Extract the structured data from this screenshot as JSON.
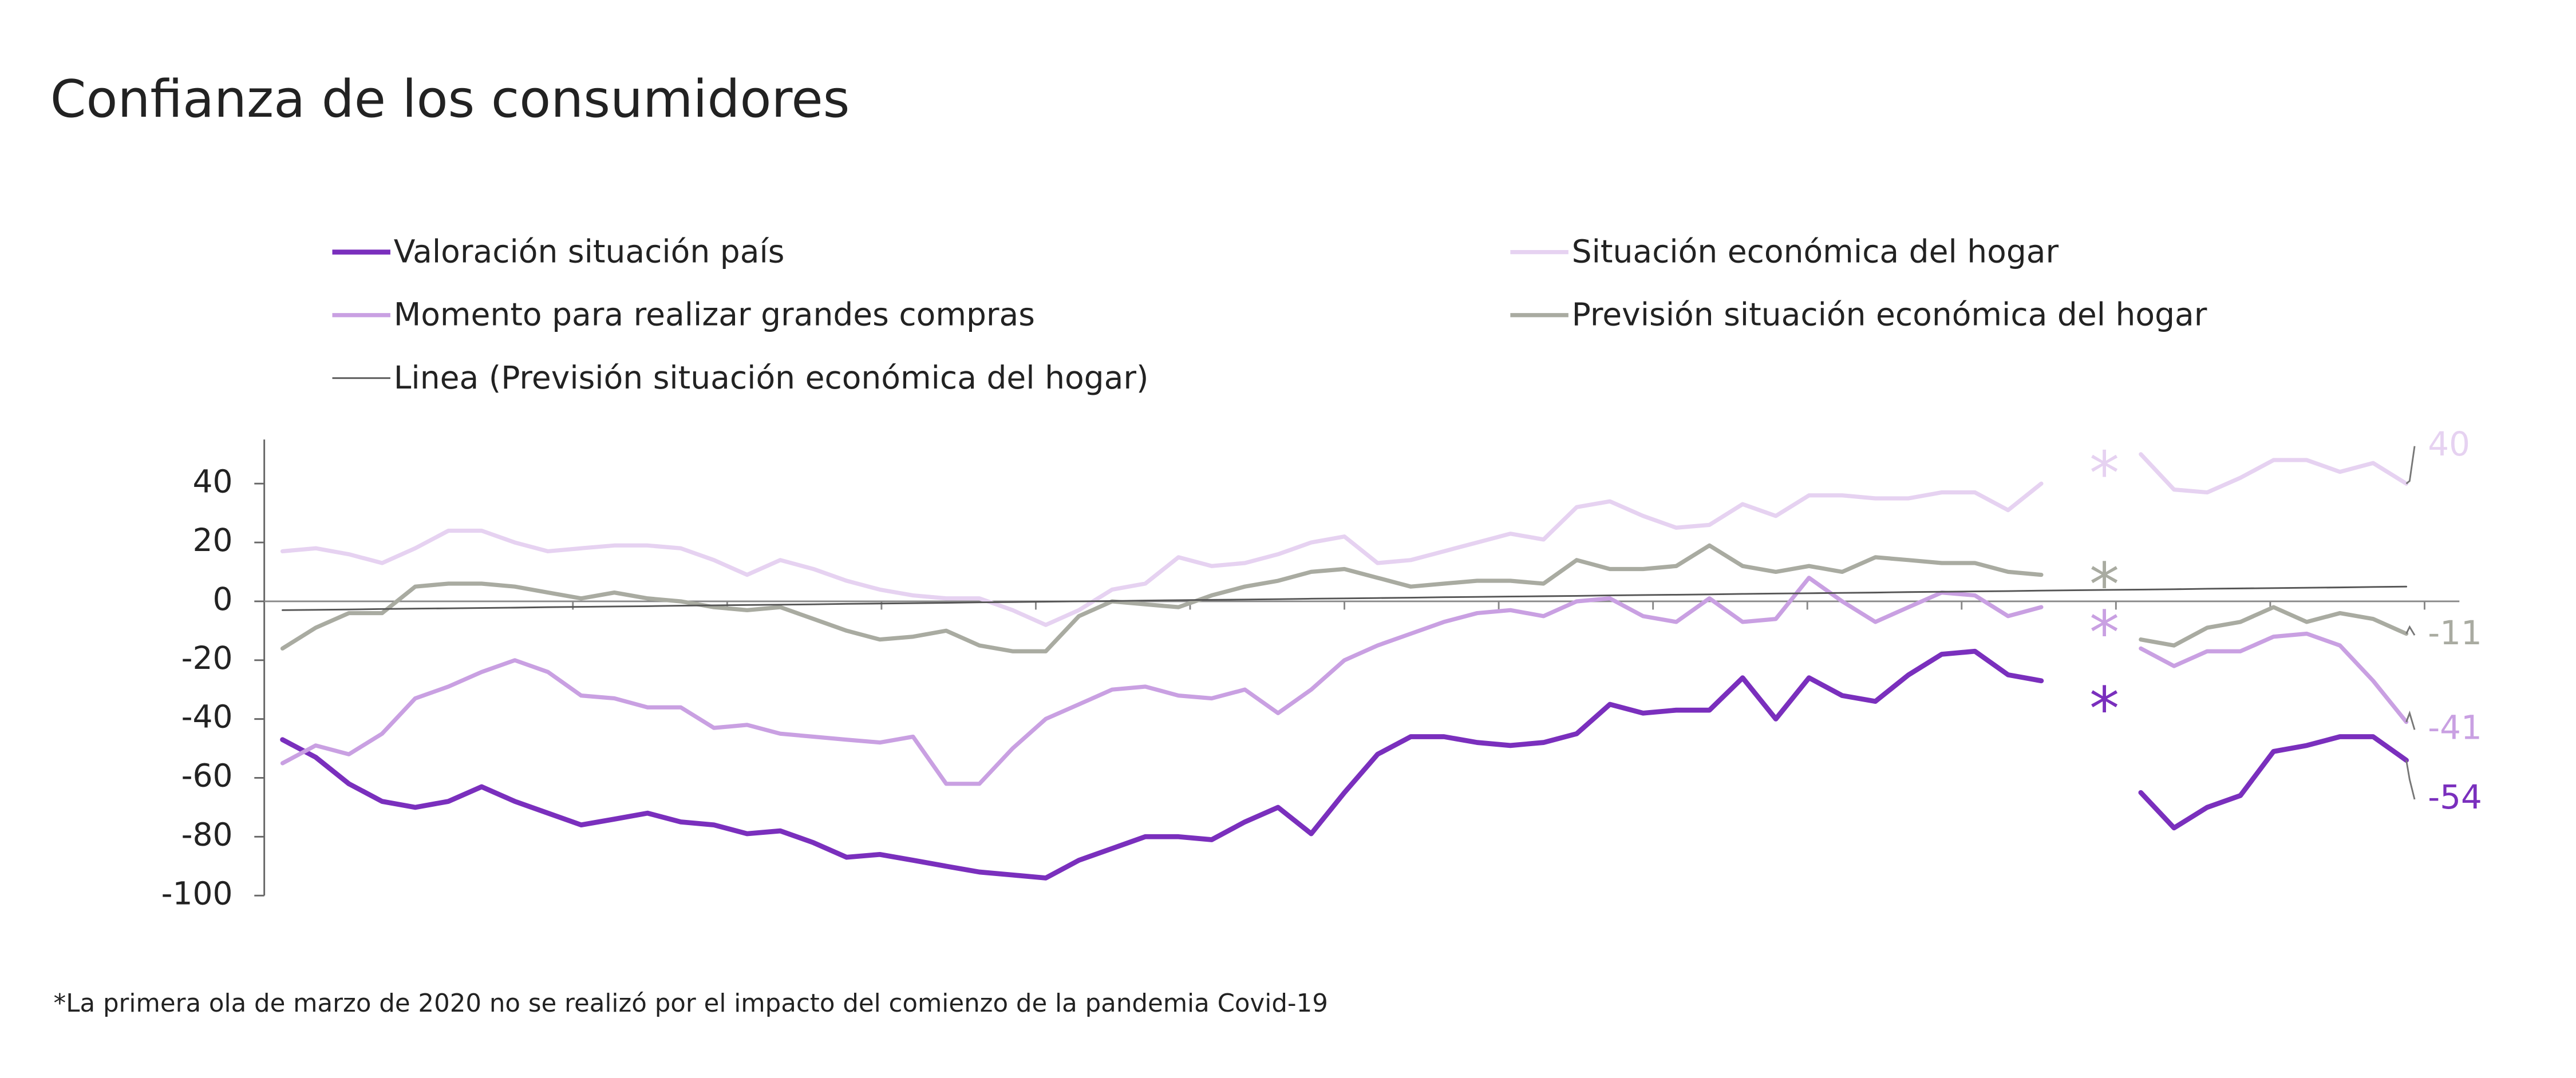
{
  "chart_data": {
    "type": "line",
    "title": "Confianza de los consumidores",
    "footnote": "*La primera ola de marzo de 2020 no se realizó por el impacto del comienzo de la pandemia Covid-19",
    "gap_marker": "*",
    "categories": [
      null,
      null,
      null,
      null,
      null,
      null,
      null,
      null,
      null,
      null,
      null,
      null,
      null,
      null,
      null,
      null,
      null,
      null,
      null,
      null,
      null,
      null,
      null,
      null,
      null,
      null,
      null,
      null,
      null,
      null,
      null,
      null,
      null,
      null,
      null,
      null,
      null,
      null,
      null,
      null,
      null,
      null,
      null,
      null,
      null,
      null,
      null,
      null,
      null,
      null,
      null,
      null,
      null,
      null,
      null,
      null,
      null,
      null,
      null,
      null,
      null,
      null,
      null,
      null,
      null
    ],
    "ylim": [
      -100,
      55
    ],
    "yticks": [
      40,
      20,
      0,
      -20,
      -40,
      -60,
      -80,
      -100
    ],
    "grid": false,
    "series": [
      {
        "name": "Valoración situación país",
        "color": "#7a2fbd",
        "values": [
          -47,
          -53,
          -62,
          -68,
          -70,
          -68,
          -63,
          -68,
          -72,
          -76,
          -74,
          -72,
          -75,
          -76,
          -79,
          -78,
          -82,
          -87,
          -86,
          -88,
          -90,
          -92,
          -93,
          -94,
          -88,
          -84,
          -80,
          -80,
          -81,
          -75,
          -70,
          -79,
          -65,
          -52,
          -46,
          -46,
          -48,
          -49,
          -48,
          -45,
          -35,
          -38,
          -37,
          -37,
          -26,
          -40,
          -26,
          -32,
          -34,
          -25,
          -18,
          -17,
          -25,
          -27,
          null,
          null,
          -65,
          -77,
          -70,
          -66,
          -51,
          -49,
          -46,
          -46,
          -54
        ]
      },
      {
        "name": "Situación económica del hogar",
        "color": "#e6d2f1",
        "values": [
          17,
          18,
          16,
          13,
          18,
          24,
          24,
          20,
          17,
          18,
          19,
          19,
          18,
          14,
          9,
          14,
          11,
          7,
          4,
          2,
          1,
          1,
          -3,
          -8,
          -3,
          4,
          6,
          15,
          12,
          13,
          16,
          20,
          22,
          13,
          14,
          17,
          20,
          23,
          21,
          32,
          34,
          29,
          25,
          26,
          33,
          29,
          36,
          36,
          35,
          35,
          37,
          37,
          31,
          40,
          null,
          null,
          50,
          38,
          37,
          42,
          48,
          48,
          44,
          47,
          40
        ]
      },
      {
        "name": "Momento para realizar grandes compras",
        "color": "#c9a0e2",
        "values": [
          -55,
          -49,
          -52,
          -45,
          -33,
          -29,
          -24,
          -20,
          -24,
          -32,
          -33,
          -36,
          -36,
          -43,
          -42,
          -45,
          -46,
          -47,
          -48,
          -46,
          -62,
          -62,
          -50,
          -40,
          -35,
          -30,
          -29,
          -32,
          -33,
          -30,
          -38,
          -30,
          -20,
          -15,
          -11,
          -7,
          -4,
          -3,
          -5,
          0,
          1,
          -5,
          -7,
          1,
          -7,
          -6,
          8,
          0,
          -7,
          -2,
          3,
          2,
          -5,
          -2,
          null,
          null,
          -16,
          -22,
          -17,
          -17,
          -12,
          -11,
          -15,
          -27,
          -41
        ]
      },
      {
        "name": "Previsión situación económica del hogar",
        "color": "#a9aba1",
        "values": [
          -16,
          -9,
          -4,
          -4,
          5,
          6,
          6,
          5,
          3,
          1,
          3,
          1,
          0,
          -2,
          -3,
          -2,
          -6,
          -10,
          -13,
          -12,
          -10,
          -15,
          -17,
          -17,
          -5,
          0,
          -1,
          -2,
          2,
          5,
          7,
          10,
          11,
          8,
          5,
          6,
          7,
          7,
          6,
          14,
          11,
          11,
          12,
          19,
          12,
          10,
          12,
          10,
          15,
          14,
          13,
          13,
          10,
          9,
          null,
          null,
          -13,
          -15,
          -9,
          -7,
          -2,
          -7,
          -4,
          -6,
          -11
        ]
      },
      {
        "name": "Linea (Previsión situación económica del hogar)",
        "color": "#555555",
        "values": [
          -3,
          -2.875,
          -2.75,
          -2.625,
          -2.5,
          -2.375,
          -2.25,
          -2.125,
          -2,
          -1.875,
          -1.75,
          -1.625,
          -1.5,
          -1.375,
          -1.25,
          -1.125,
          -1,
          -0.875,
          -0.75,
          -0.625,
          -0.5,
          -0.375,
          -0.25,
          -0.125,
          0,
          0.125,
          0.25,
          0.375,
          0.5,
          0.625,
          0.75,
          0.875,
          1,
          1.125,
          1.25,
          1.375,
          1.5,
          1.625,
          1.75,
          1.875,
          2,
          2.125,
          2.25,
          2.375,
          2.5,
          2.625,
          2.75,
          2.875,
          3,
          3.125,
          3.25,
          3.375,
          3.5,
          3.625,
          3.75,
          3.875,
          4,
          4.125,
          4.25,
          4.375,
          4.5,
          4.625,
          4.75,
          4.875,
          5
        ]
      }
    ]
  }
}
